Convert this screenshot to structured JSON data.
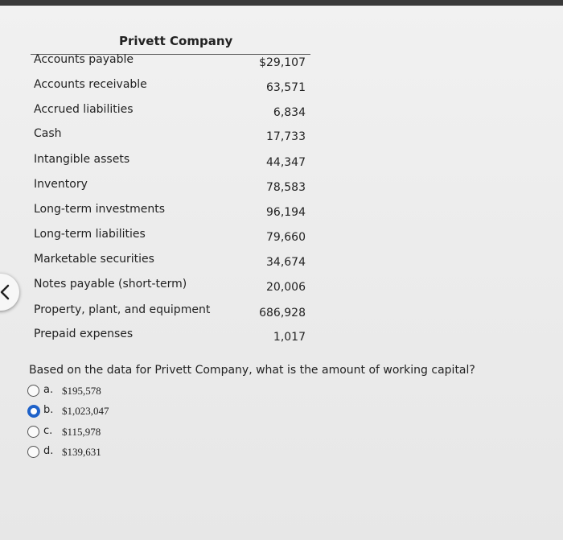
{
  "company": {
    "title": "Privett Company"
  },
  "rows": [
    {
      "label": "Accounts payable",
      "value": "$29,107"
    },
    {
      "label": "Accounts receivable",
      "value": "63,571"
    },
    {
      "label": "Accrued liabilities",
      "value": "6,834"
    },
    {
      "label": "Cash",
      "value": "17,733"
    },
    {
      "label": "Intangible assets",
      "value": "44,347"
    },
    {
      "label": "Inventory",
      "value": "78,583"
    },
    {
      "label": "Long-term investments",
      "value": "96,194"
    },
    {
      "label": "Long-term liabilities",
      "value": "79,660"
    },
    {
      "label": "Marketable securities",
      "value": "34,674"
    },
    {
      "label": "Notes payable (short-term)",
      "value": "20,006"
    },
    {
      "label": "Property, plant, and equipment",
      "value": "686,928"
    },
    {
      "label": "Prepaid expenses",
      "value": "1,017"
    }
  ],
  "question": {
    "text": "Based on the data for Privett Company, what is the amount of working capital?"
  },
  "options": [
    {
      "letter": "a.",
      "value": "$195,578",
      "selected": false
    },
    {
      "letter": "b.",
      "value": "$1,023,047",
      "selected": true
    },
    {
      "letter": "c.",
      "value": "$115,978",
      "selected": false
    },
    {
      "letter": "d.",
      "value": "$139,631",
      "selected": false
    }
  ],
  "colors": {
    "accent": "#1f62c9",
    "text": "#222222",
    "background": "#ececec"
  },
  "icons": {
    "back": "chevron-left-icon"
  }
}
